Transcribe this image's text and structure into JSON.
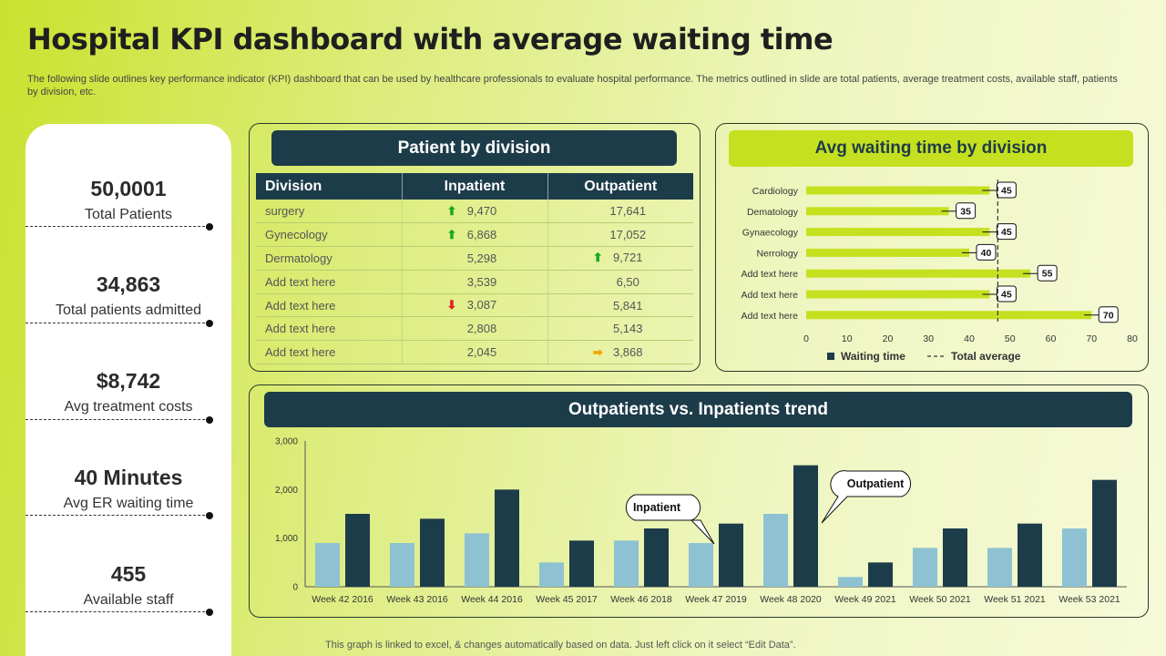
{
  "title": "Hospital KPI dashboard with average waiting time",
  "subtitle": "The following slide outlines key performance indicator (KPI) dashboard that can be used by healthcare professionals to evaluate hospital performance. The metrics outlined in slide are total patients, average treatment costs, available staff, patients by division, etc.",
  "kpis": [
    {
      "value": "50,0001",
      "label": "Total Patients"
    },
    {
      "value": "34,863",
      "label": "Total patients admitted"
    },
    {
      "value": "$8,742",
      "label": "Avg treatment costs"
    },
    {
      "value": "40 Minutes",
      "label": "Avg ER waiting time"
    },
    {
      "value": "455",
      "label": "Available staff"
    }
  ],
  "division_panel": {
    "title": "Patient by division",
    "columns": [
      "Division",
      "Inpatient",
      "Outpatient"
    ],
    "rows": [
      {
        "division": "surgery",
        "inpatient": "9,470",
        "inpatient_icon": "up-arrow-icon",
        "outpatient": "17,641",
        "outpatient_icon": ""
      },
      {
        "division": "Gynecology",
        "inpatient": "6,868",
        "inpatient_icon": "up-arrow-icon",
        "outpatient": "17,052",
        "outpatient_icon": ""
      },
      {
        "division": "Dermatology",
        "inpatient": "5,298",
        "inpatient_icon": "",
        "outpatient": "9,721",
        "outpatient_icon": "up-arrow-icon"
      },
      {
        "division": "Add text here",
        "inpatient": "3,539",
        "inpatient_icon": "",
        "outpatient": "6,50",
        "outpatient_icon": ""
      },
      {
        "division": "Add text here",
        "inpatient": "3,087",
        "inpatient_icon": "down-arrow-icon",
        "outpatient": "5,841",
        "outpatient_icon": ""
      },
      {
        "division": "Add text here",
        "inpatient": "2,808",
        "inpatient_icon": "",
        "outpatient": "5,143",
        "outpatient_icon": ""
      },
      {
        "division": "Add text here",
        "inpatient": "2,045",
        "inpatient_icon": "",
        "outpatient": "3,868",
        "outpatient_icon": "right-arrow-icon"
      }
    ]
  },
  "colors": {
    "dark_teal": "#1d3c49",
    "lime": "#c5e01f",
    "light_blue": "#8ec2d2",
    "arrow_up": "#18a818",
    "arrow_down": "#e02020",
    "arrow_right": "#f0a800"
  },
  "chart_data": [
    {
      "type": "bar",
      "orientation": "horizontal",
      "title": "Avg waiting time by division",
      "categories": [
        "Cardiology",
        "Dematology",
        "Gynaecology",
        "Nerrology",
        "Add text here",
        "Add text here",
        "Add text here"
      ],
      "series": [
        {
          "name": "Waiting time",
          "values": [
            45,
            35,
            45,
            40,
            55,
            45,
            70
          ]
        }
      ],
      "reference_line": {
        "name": "Total average",
        "value": 47
      },
      "xlim": [
        0,
        80
      ],
      "xticks": [
        0,
        10,
        20,
        30,
        40,
        50,
        60,
        70,
        80
      ],
      "legend_position": "bottom",
      "data_labels": true
    },
    {
      "type": "bar",
      "title": "Outpatients vs. Inpatients trend",
      "categories": [
        "Week 42 2016",
        "Week 43 2016",
        "Week 44 2016",
        "Week 45 2017",
        "Week 46 2018",
        "Week 47 2019",
        "Week 48 2020",
        "Week 49 2021",
        "Week 50 2021",
        "Week 51 2021",
        "Week 53 2021"
      ],
      "series": [
        {
          "name": "Inpatient",
          "values": [
            900,
            900,
            1100,
            500,
            950,
            900,
            1500,
            200,
            800,
            800,
            1200
          ]
        },
        {
          "name": "Outpatient",
          "values": [
            1500,
            1400,
            2000,
            950,
            1200,
            1300,
            2500,
            500,
            1200,
            1300,
            2200
          ]
        }
      ],
      "ylim": [
        0,
        3000
      ],
      "yticks": [
        "0",
        "1,000",
        "2,000",
        "3,000"
      ],
      "annotations": [
        "Inpatient",
        "Outpatient"
      ],
      "grid": false
    }
  ],
  "footer_note": "This graph is linked to excel, & changes automatically based on data. Just left click on it select “Edit Data”."
}
